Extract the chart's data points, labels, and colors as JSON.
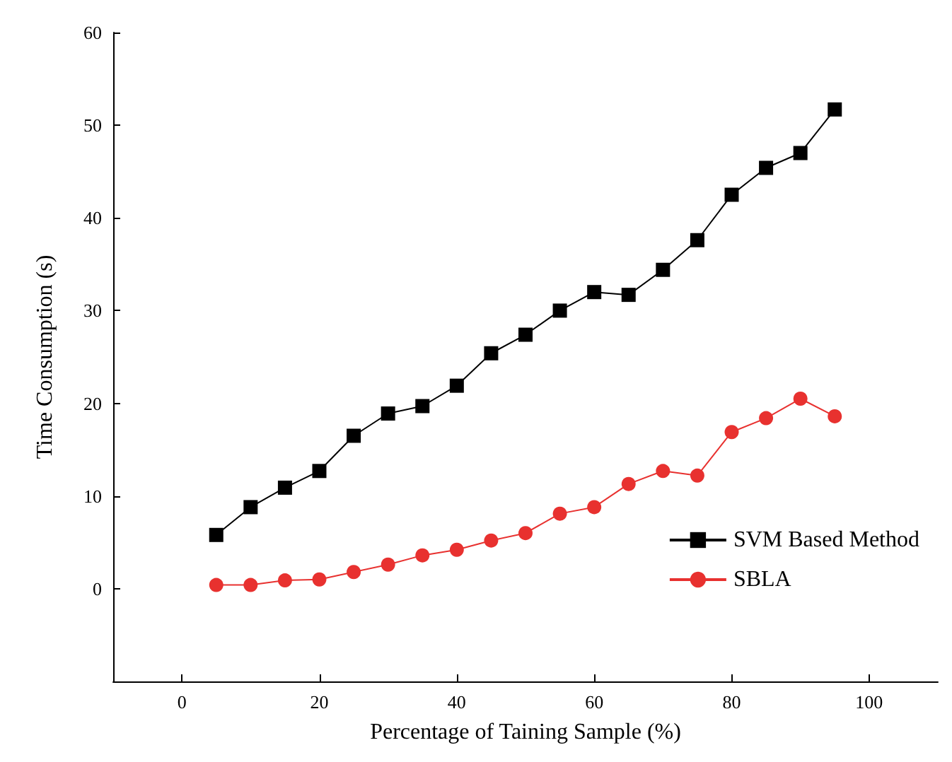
{
  "chart_data": {
    "type": "line",
    "xlabel": "Percentage of Taining Sample (%)",
    "ylabel": "Time Consumption (s)",
    "x": [
      5,
      10,
      15,
      20,
      25,
      30,
      35,
      40,
      45,
      50,
      55,
      60,
      65,
      70,
      75,
      80,
      85,
      90,
      95
    ],
    "series": [
      {
        "name": "SVM Based Method",
        "color": "#000000",
        "marker": "square",
        "values": [
          5.8,
          8.8,
          10.9,
          12.7,
          16.5,
          18.9,
          19.7,
          21.9,
          25.4,
          27.4,
          30,
          32,
          31.7,
          34.4,
          37.6,
          42.5,
          45.4,
          47,
          51.7
        ]
      },
      {
        "name": "SBLA",
        "color": "#e8312f",
        "marker": "circle",
        "values": [
          0.4,
          0.4,
          0.9,
          1.0,
          1.8,
          2.6,
          3.6,
          4.2,
          5.2,
          6.0,
          8.1,
          8.8,
          11.3,
          12.7,
          12.2,
          16.9,
          18.4,
          20.5,
          18.6
        ]
      }
    ],
    "xlim": [
      -10,
      110
    ],
    "xticks": [
      0,
      20,
      40,
      60,
      80,
      100
    ],
    "ylim": [
      -10,
      60
    ],
    "yticks": [
      0,
      10,
      20,
      30,
      40,
      50,
      60
    ],
    "grid": false,
    "legend": "bottom right",
    "line_style": "solid"
  }
}
